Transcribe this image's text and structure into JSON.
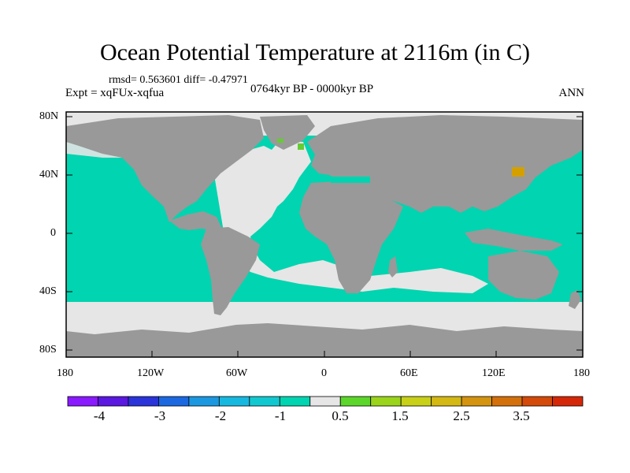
{
  "title": "Ocean Potential Temperature at 2116m (in C)",
  "stats": "rmsd= 0.563601  diff= -0.47971",
  "experiment": "Expt = xqFUx-xqfua",
  "period": "0764kyr BP - 0000kyr BP",
  "season": "ANN",
  "colors": {
    "land": "#999999",
    "ocean_main": "#00d4b0",
    "neutral": "#e6e6e6",
    "warm": "#d4a000",
    "green": "#66cc33"
  },
  "lat_ticks": [
    "80N",
    "40N",
    "0",
    "40S",
    "80S"
  ],
  "lon_ticks": [
    "180",
    "120W",
    "60W",
    "0",
    "60E",
    "120E",
    "180"
  ],
  "colorbar": {
    "colors": [
      "#8a1aff",
      "#5a18e0",
      "#2a34d8",
      "#1c68e0",
      "#1c98e0",
      "#17b8e0",
      "#12c8d0",
      "#00d4b0",
      "#e6e6e6",
      "#5cd62a",
      "#9ad41c",
      "#c8d018",
      "#d4b814",
      "#d49410",
      "#d4700c",
      "#d44a0a",
      "#d42808"
    ],
    "labels": [
      "-4",
      "-3",
      "-2",
      "-1",
      "0.5",
      "1.5",
      "2.5",
      "3.5"
    ]
  }
}
